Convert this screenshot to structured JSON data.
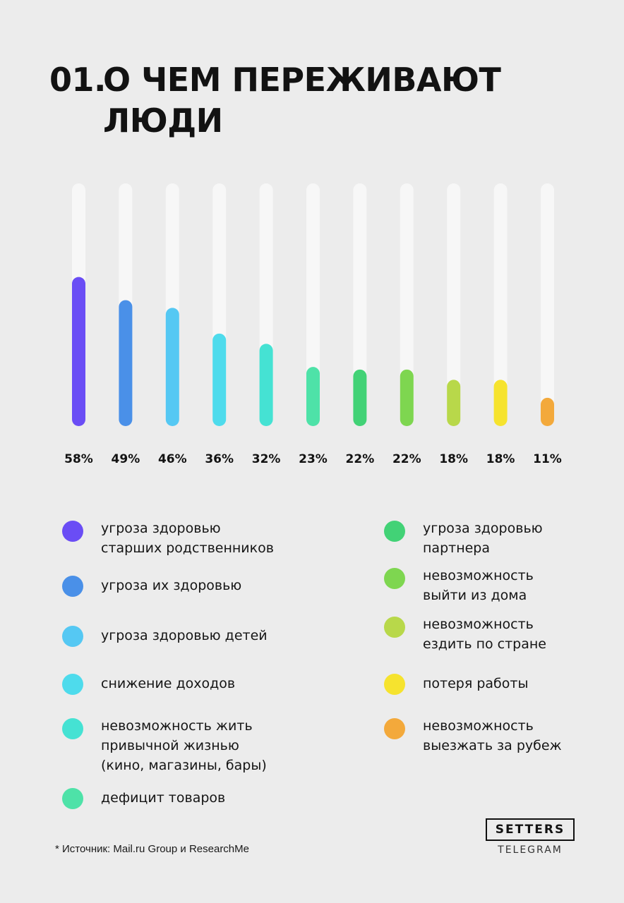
{
  "title": {
    "number": "01.",
    "line1": "О ЧЕМ ПЕРЕЖИВАЮТ",
    "line2": "ЛЮДИ"
  },
  "chart_data": {
    "type": "bar",
    "max_value": 100,
    "values": [
      58,
      49,
      46,
      36,
      32,
      23,
      22,
      22,
      18,
      18,
      11
    ],
    "value_labels": [
      "58%",
      "49%",
      "46%",
      "36%",
      "32%",
      "23%",
      "22%",
      "22%",
      "18%",
      "18%",
      "11%"
    ],
    "colors": [
      "#6a4df5",
      "#4a90e8",
      "#55c8f3",
      "#4edbec",
      "#45e2d3",
      "#4ee2a8",
      "#42d276",
      "#7ed650",
      "#b8d84a",
      "#f6e32e",
      "#f3a93b"
    ],
    "track_color": "#f7f7f7",
    "series": [
      {
        "name": "угроза здоровью\nстарших родственников",
        "value": 58,
        "color": "#6a4df5"
      },
      {
        "name": "угроза их здоровью",
        "value": 49,
        "color": "#4a90e8"
      },
      {
        "name": "угроза здоровью детей",
        "value": 46,
        "color": "#55c8f3"
      },
      {
        "name": "снижение доходов",
        "value": 36,
        "color": "#4edbec"
      },
      {
        "name": "невозможность жить\nпривычной жизнью\n(кино, магазины, бары)",
        "value": 32,
        "color": "#45e2d3"
      },
      {
        "name": "дефицит товаров",
        "value": 23,
        "color": "#4ee2a8"
      },
      {
        "name": "угроза здоровью\nпартнера",
        "value": 22,
        "color": "#42d276"
      },
      {
        "name": "невозможность\nвыйти из дома",
        "value": 22,
        "color": "#7ed650"
      },
      {
        "name": "невозможность\nездить по стране",
        "value": 18,
        "color": "#b8d84a"
      },
      {
        "name": "потеря работы",
        "value": 18,
        "color": "#f6e32e"
      },
      {
        "name": "невозможность\nвыезжать за рубеж",
        "value": 11,
        "color": "#f3a93b"
      }
    ]
  },
  "footnote": "* Источник: Mail.ru Group и ResearchMe",
  "brand": {
    "name": "SETTERS",
    "sub": "TELEGRAM"
  }
}
